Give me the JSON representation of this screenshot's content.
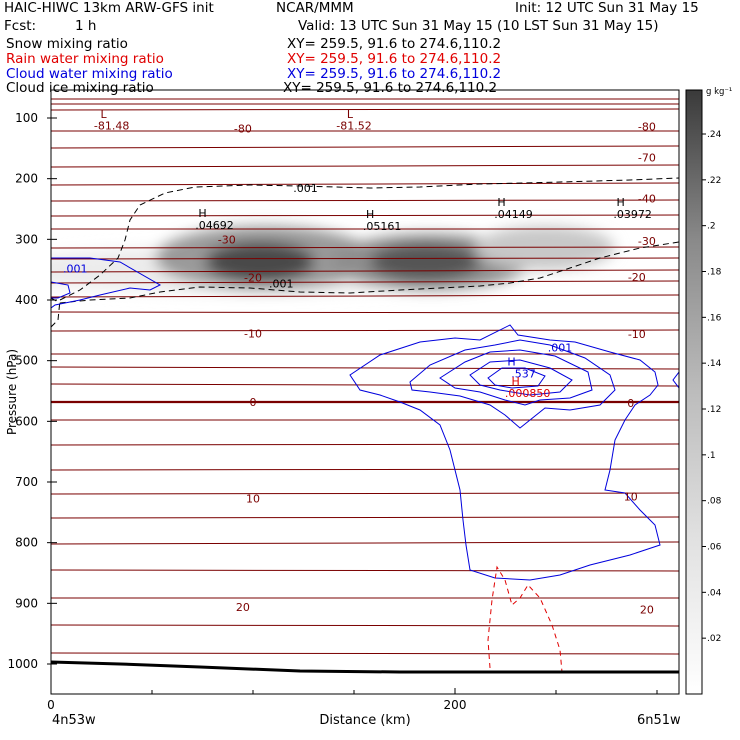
{
  "header": {
    "model": "HAIC-HIWC 13km ARW-GFS init",
    "org": "NCAR/MMM",
    "init": "Init: 12 UTC Sun 31 May 15",
    "fcst_label": "Fcst:",
    "fcst_value": "1 h",
    "valid": "Valid: 13 UTC Sun 31 May 15 (10 LST Sun 31 May 15)"
  },
  "fields": [
    {
      "name": "Snow mixing ratio",
      "xy": "XY= 259.5, 91.6 to 274.6,110.2",
      "color": "#000000"
    },
    {
      "name": "Rain water mixing ratio",
      "xy": "XY= 259.5, 91.6 to 274.6,110.2",
      "color": "#e00000"
    },
    {
      "name": "Cloud water mixing ratio",
      "xy": "XY= 259.5, 91.6 to 274.6,110.2",
      "color": "#0000dd"
    },
    {
      "name": "Cloud ice mixing ratio",
      "xy": "XY= 259.5, 91.6 to 274.6,110.2",
      "color": "#000000"
    }
  ],
  "chart_data": {
    "type": "contour",
    "xlabel": "Distance (km)",
    "ylabel": "Pressure (hPa)",
    "xlim": [
      0,
      310
    ],
    "ylim": [
      1040,
      60
    ],
    "x_ticks": [
      "0",
      "200"
    ],
    "y_ticks": [
      "100",
      "200",
      "300",
      "400",
      "500",
      "600",
      "700",
      "800",
      "900",
      "1000"
    ],
    "left_endpoint": "4n53w",
    "right_endpoint": "6n51w",
    "colorbar": {
      "unit": "g kg⁻¹",
      "ticks": [
        ".02",
        ".04",
        ".06",
        ".08",
        ".1",
        ".12",
        ".14",
        ".16",
        ".18",
        ".2",
        ".22",
        ".24"
      ]
    },
    "isotherm_labels": [
      {
        "value": "-81.48",
        "x": 30,
        "p": 112
      },
      {
        "value": "-81.52",
        "x": 150,
        "p": 112
      },
      {
        "value": "-80",
        "x": 95,
        "p": 117
      },
      {
        "value": "-80",
        "x": 295,
        "p": 114
      },
      {
        "value": "-70",
        "x": 295,
        "p": 165
      },
      {
        "value": "-40",
        "x": 295,
        "p": 233
      },
      {
        "value": "-30",
        "x": 87,
        "p": 300
      },
      {
        "value": "-30",
        "x": 295,
        "p": 303
      },
      {
        "value": "-20",
        "x": 100,
        "p": 363
      },
      {
        "value": "-20",
        "x": 290,
        "p": 362
      },
      {
        "value": "-10",
        "x": 100,
        "p": 455
      },
      {
        "value": "-10",
        "x": 290,
        "p": 456
      },
      {
        "value": "0",
        "x": 100,
        "p": 568
      },
      {
        "value": "0",
        "x": 287,
        "p": 570
      },
      {
        "value": "10",
        "x": 100,
        "p": 727
      },
      {
        "value": "10",
        "x": 287,
        "p": 724
      },
      {
        "value": "20",
        "x": 95,
        "p": 906
      },
      {
        "value": "20",
        "x": 295,
        "p": 910
      }
    ],
    "markers": [
      {
        "letter": "L",
        "label": "",
        "x": 26,
        "p": 100,
        "color": "#7a0000"
      },
      {
        "letter": "L",
        "label": "",
        "x": 148,
        "p": 100,
        "color": "#7a0000"
      },
      {
        "letter": "H",
        "label": ".04692",
        "x": 75,
        "p": 263,
        "color": "#000000"
      },
      {
        "letter": "H",
        "label": ".05161",
        "x": 158,
        "p": 265,
        "color": "#000000"
      },
      {
        "letter": "H",
        "label": ".04149",
        "x": 223,
        "p": 245,
        "color": "#000000"
      },
      {
        "letter": "H",
        "label": ".03972",
        "x": 282,
        "p": 245,
        "color": "#000000"
      },
      {
        "letter": "H",
        "label": ".537",
        "x": 228,
        "p": 508,
        "color": "#0000dd"
      },
      {
        "letter": "H",
        "label": ".000850",
        "x": 230,
        "p": 540,
        "color": "#e00000"
      }
    ],
    "contour_labels": [
      {
        "value": ".001",
        "x": 126,
        "p": 215,
        "color": "#000000"
      },
      {
        "value": ".001",
        "x": 114,
        "p": 373,
        "color": "#000000"
      },
      {
        "value": ".001",
        "x": 12,
        "p": 348,
        "color": "#0000dd"
      },
      {
        "value": ".001",
        "x": 252,
        "p": 478,
        "color": "#0000dd"
      }
    ],
    "snow_maxima": [
      0.04692,
      0.05161,
      0.04149,
      0.03972
    ],
    "cloud_water_max": 0.537,
    "rain_water_max": 0.00085
  }
}
